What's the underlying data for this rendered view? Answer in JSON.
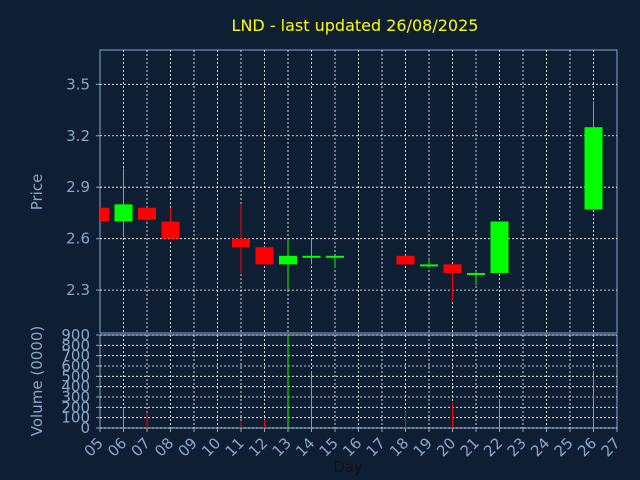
{
  "chart_data": {
    "type": "candlestick",
    "title": "LND - last updated 26/08/2025",
    "xlabel": "Day",
    "price_panel": {
      "ylabel": "Price",
      "ylim": [
        2.05,
        3.7
      ],
      "yticks": [
        "2.3",
        "2.6",
        "2.9",
        "3.2",
        "3.5"
      ]
    },
    "volume_panel": {
      "ylabel": "Volume (0000)",
      "ylim": [
        0,
        900
      ],
      "yticks": [
        "0",
        "100",
        "200",
        "300",
        "400",
        "500",
        "600",
        "700",
        "800",
        "900"
      ]
    },
    "x_ticks": [
      "05",
      "06",
      "07",
      "08",
      "09",
      "10",
      "11",
      "12",
      "13",
      "14",
      "15",
      "16",
      "17",
      "18",
      "19",
      "20",
      "21",
      "22",
      "23",
      "24",
      "25",
      "26",
      "27"
    ],
    "candles": [
      {
        "day": 5,
        "open": 2.7,
        "high": 2.78,
        "low": 2.7,
        "close": 2.78,
        "volume": 0,
        "color": "#ff0000"
      },
      {
        "day": 6,
        "open": 2.7,
        "high": 3.01,
        "low": 2.61,
        "close": 2.8,
        "volume": 200,
        "color": "#00ff00"
      },
      {
        "day": 7,
        "open": 2.78,
        "high": 2.78,
        "low": 2.7,
        "close": 2.71,
        "volume": 150,
        "color": "#ff0000"
      },
      {
        "day": 8,
        "open": 2.7,
        "high": 2.78,
        "low": 2.59,
        "close": 2.6,
        "volume": 0,
        "color": "#ff0000"
      },
      {
        "day": 11,
        "open": 2.6,
        "high": 2.8,
        "low": 2.4,
        "close": 2.55,
        "volume": 60,
        "color": "#ff0000"
      },
      {
        "day": 12,
        "open": 2.55,
        "high": 2.55,
        "low": 2.45,
        "close": 2.45,
        "volume": 80,
        "color": "#ff0000"
      },
      {
        "day": 13,
        "open": 2.45,
        "high": 2.6,
        "low": 2.3,
        "close": 2.5,
        "volume": 900,
        "color": "#00ff00"
      },
      {
        "day": 14,
        "open": 2.49,
        "high": 2.6,
        "low": 2.45,
        "close": 2.5,
        "volume": 550,
        "color": "#00ff00"
      },
      {
        "day": 15,
        "open": 2.49,
        "high": 2.5,
        "low": 2.43,
        "close": 2.5,
        "volume": 0,
        "color": "#00ff00"
      },
      {
        "day": 18,
        "open": 2.5,
        "high": 2.5,
        "low": 2.45,
        "close": 2.45,
        "volume": 160,
        "color": "#ff0000"
      },
      {
        "day": 19,
        "open": 2.44,
        "high": 2.48,
        "low": 2.43,
        "close": 2.45,
        "volume": 0,
        "color": "#00ff00"
      },
      {
        "day": 20,
        "open": 2.45,
        "high": 2.45,
        "low": 2.24,
        "close": 2.4,
        "volume": 240,
        "color": "#ff0000"
      },
      {
        "day": 21,
        "open": 2.39,
        "high": 2.41,
        "low": 2.33,
        "close": 2.4,
        "volume": 0,
        "color": "#00ff00"
      },
      {
        "day": 22,
        "open": 2.4,
        "high": 2.7,
        "low": 2.4,
        "close": 2.7,
        "volume": 280,
        "color": "#00ff00"
      },
      {
        "day": 26,
        "open": 2.77,
        "high": 3.4,
        "low": 2.77,
        "close": 3.25,
        "volume": 550,
        "color": "#00ff00"
      }
    ]
  }
}
